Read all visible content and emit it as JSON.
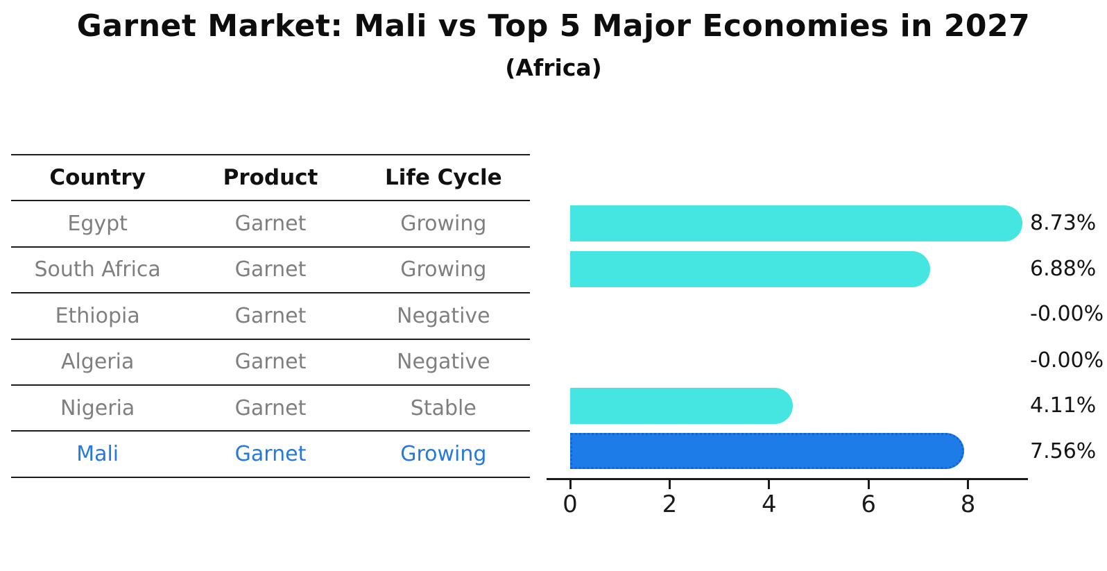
{
  "title": "Garnet Market: Mali vs Top 5 Major Economies in 2027",
  "subtitle": "(Africa)",
  "table": {
    "headers": [
      "Country",
      "Product",
      "Life Cycle"
    ],
    "rows": [
      {
        "country": "Egypt",
        "product": "Garnet",
        "life_cycle": "Growing",
        "highlight": false
      },
      {
        "country": "South Africa",
        "product": "Garnet",
        "life_cycle": "Growing",
        "highlight": false
      },
      {
        "country": "Ethiopia",
        "product": "Garnet",
        "life_cycle": "Negative",
        "highlight": false
      },
      {
        "country": "Algeria",
        "product": "Garnet",
        "life_cycle": "Negative",
        "highlight": false
      },
      {
        "country": "Nigeria",
        "product": "Garnet",
        "life_cycle": "Stable",
        "highlight": false
      },
      {
        "country": "Mali",
        "product": "Garnet",
        "life_cycle": "Growing",
        "highlight": true
      }
    ]
  },
  "chart_data": {
    "type": "bar",
    "orientation": "horizontal",
    "title": "Garnet Market: Mali vs Top 5 Major Economies in 2027",
    "subtitle": "(Africa)",
    "categories": [
      "Egypt",
      "South Africa",
      "Ethiopia",
      "Algeria",
      "Nigeria",
      "Mali"
    ],
    "values": [
      8.73,
      6.88,
      -0.0,
      -0.0,
      4.11,
      7.56
    ],
    "value_labels": [
      "8.73%",
      "6.88%",
      "-0.00%",
      "-0.00%",
      "4.11%",
      "7.56%"
    ],
    "highlight_index": 5,
    "xlim": [
      0,
      9.2
    ],
    "x_ticks": [
      0,
      2,
      4,
      6,
      8
    ],
    "grid": false,
    "legend": false
  },
  "colors": {
    "bar": "#45E6E2",
    "highlight_bar": "#1E7CE8",
    "highlight_border": "#1263D6",
    "highlight_text": "#2478DE",
    "muted_text": "#7f7f7f",
    "dark_text": "#111111"
  }
}
